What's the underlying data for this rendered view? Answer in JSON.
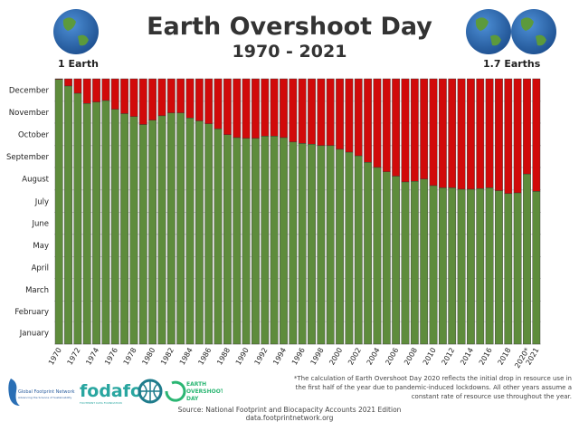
{
  "header": {
    "title": "Earth Overshoot Day",
    "subtitle": "1970 - 2021",
    "left_label": "1 Earth",
    "right_label": "1.7 Earths"
  },
  "colors": {
    "green": "#5e8c3c",
    "red": "#d10a0a",
    "bar_border": "#333333",
    "grid": "#bbbbbb"
  },
  "chart_data": {
    "type": "bar",
    "stacked": true,
    "title": "Earth Overshoot Day",
    "subtitle": "1970 - 2021",
    "y_axis": {
      "unit": "month of year",
      "ticks": [
        "January",
        "February",
        "March",
        "April",
        "May",
        "June",
        "July",
        "August",
        "September",
        "October",
        "November",
        "December"
      ],
      "range": [
        "01-01",
        "12-31"
      ]
    },
    "x_tick_labels": [
      "1970",
      "1972",
      "1974",
      "1976",
      "1978",
      "1980",
      "1982",
      "1984",
      "1986",
      "1988",
      "1990",
      "1992",
      "1994",
      "1996",
      "1998",
      "2000",
      "2002",
      "2004",
      "2006",
      "2008",
      "2010",
      "2012",
      "2014",
      "2016",
      "2018",
      "2020*",
      "2021"
    ],
    "grid": true,
    "categories": [
      1970,
      1971,
      1972,
      1973,
      1974,
      1975,
      1976,
      1977,
      1978,
      1979,
      1980,
      1981,
      1982,
      1983,
      1984,
      1985,
      1986,
      1987,
      1988,
      1989,
      1990,
      1991,
      1992,
      1993,
      1994,
      1995,
      1996,
      1997,
      1998,
      1999,
      2000,
      2001,
      2002,
      2003,
      2004,
      2005,
      2006,
      2007,
      2008,
      2009,
      2010,
      2011,
      2012,
      2013,
      2014,
      2015,
      2016,
      2017,
      2018,
      2019,
      2020,
      2021
    ],
    "overshoot_dates": [
      "12-30",
      "12-21",
      "12-11",
      "11-27",
      "11-29",
      "12-01",
      "11-19",
      "11-13",
      "11-09",
      "10-29",
      "11-04",
      "11-10",
      "11-14",
      "11-14",
      "11-07",
      "11-03",
      "10-30",
      "10-23",
      "10-15",
      "10-11",
      "10-10",
      "10-10",
      "10-13",
      "10-13",
      "10-11",
      "10-05",
      "10-03",
      "10-02",
      "09-30",
      "09-30",
      "09-25",
      "09-21",
      "09-16",
      "09-07",
      "08-31",
      "08-25",
      "08-19",
      "08-11",
      "08-12",
      "08-15",
      "08-06",
      "08-03",
      "08-03",
      "08-01",
      "08-01",
      "08-02",
      "08-03",
      "07-30",
      "07-26",
      "07-27",
      "08-22",
      "07-29"
    ]
  },
  "footer": {
    "footnote": "*The calculation of Earth Overshoot Day 2020 reflects the initial drop in resource use in the first half of the year due to pandemic-induced lockdowns. All other years assume a constant rate of resource use throughout the year.",
    "source": "Source: National Footprint and Biocapacity Accounts 2021 Edition",
    "url": "data.footprintnetwork.org",
    "logos": {
      "gfn": "Global Footprint Network",
      "gfn_tagline": "Advancing the Science of Sustainability",
      "fodafo": "fodafo",
      "fodafo_tagline": "FOOTPRINT DATA FOUNDATION",
      "eod": "EARTH OVERSHOOT DAY"
    }
  }
}
